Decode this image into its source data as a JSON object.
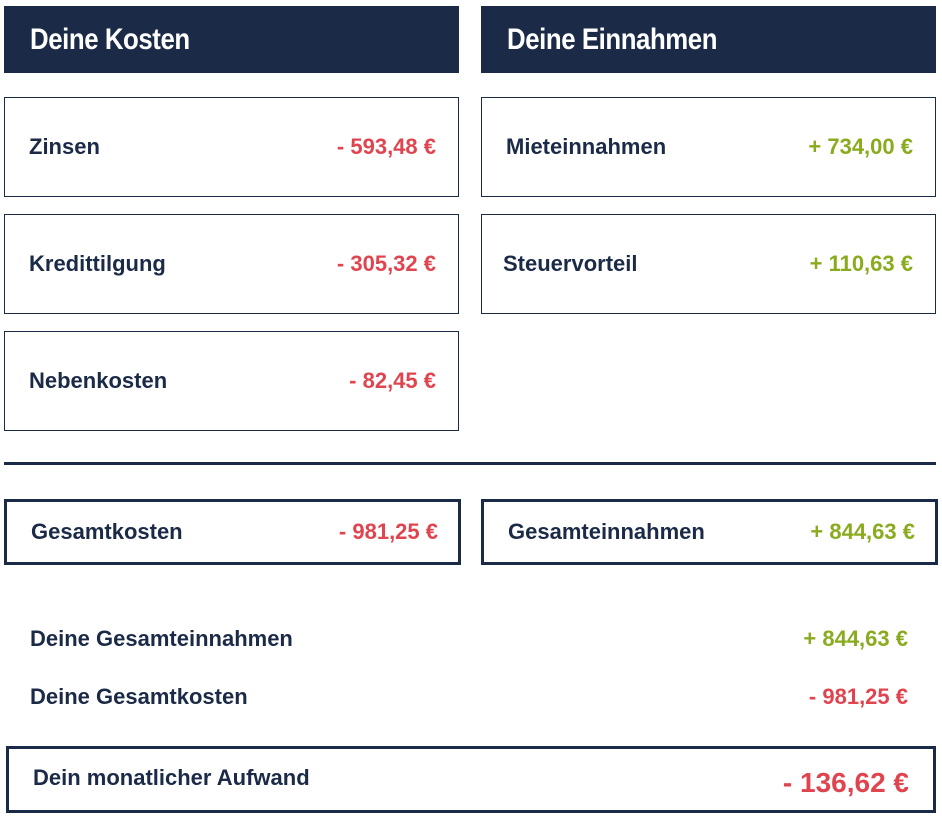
{
  "costs": {
    "header": "Deine Kosten",
    "items": [
      {
        "label": "Zinsen",
        "value": "- 593,48 €"
      },
      {
        "label": "Kredittilgung",
        "value": "- 305,32 €"
      },
      {
        "label": "Nebenkosten",
        "value": "- 82,45 €"
      }
    ],
    "total": {
      "label": "Gesamtkosten",
      "value": "- 981,25 €"
    }
  },
  "income": {
    "header": "Deine Einnahmen",
    "items": [
      {
        "label": "Mieteinnahmen",
        "value": "+ 734,00 €"
      },
      {
        "label": "Steuervorteil",
        "value": "+ 110,63 €"
      }
    ],
    "total": {
      "label": "Gesamteinnahmen",
      "value": "+ 844,63 €"
    }
  },
  "summary": {
    "income": {
      "label": "Deine Gesamteinnahmen",
      "value": "+ 844,63 €"
    },
    "costs": {
      "label": "Deine Gesamtkosten",
      "value": "- 981,25 €"
    },
    "result": {
      "label": "Dein monatlicher Aufwand",
      "value": "- 136,62 €"
    }
  },
  "colors": {
    "navy": "#1b2a47",
    "negative": "#e0454f",
    "positive": "#8aab1e"
  }
}
